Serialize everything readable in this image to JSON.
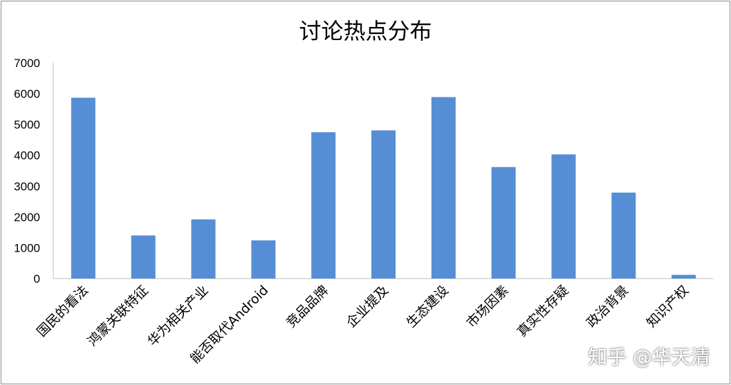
{
  "chart_data": {
    "type": "bar",
    "title": "讨论热点分布",
    "categories": [
      "国民的看法",
      "鸿蒙关联特征",
      "华为相关产业",
      "能否取代Android",
      "竞品品牌",
      "企业提及",
      "生态建设",
      "市场因素",
      "真实性存疑",
      "政治背景",
      "知识产权"
    ],
    "values": [
      5870,
      1400,
      1920,
      1240,
      4750,
      4810,
      5890,
      3620,
      4030,
      2790,
      120
    ],
    "xlabel": "",
    "ylabel": "",
    "ylim": [
      0,
      7000
    ],
    "yticks": [
      "0",
      "1000",
      "2000",
      "3000",
      "4000",
      "5000",
      "6000",
      "7000"
    ],
    "grid": false,
    "legend": "none",
    "bar_color": "#558ed5"
  },
  "watermark": "知乎 @华天清"
}
